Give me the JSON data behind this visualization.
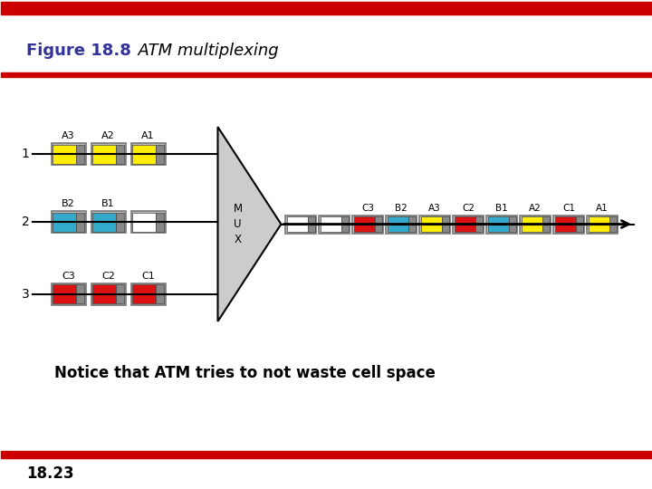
{
  "title_bold": "Figure 18.8",
  "title_italic": "  ATM multiplexing",
  "page_number": "18.23",
  "notice_text": "Notice that ATM tries to not waste cell space",
  "top_bar_color": "#cc0000",
  "bg_color": "#ffffff",
  "title_color": "#333399",
  "input_lines": [
    {
      "label": "1",
      "cells": [
        {
          "label": "A3",
          "color": "#ffee00"
        },
        {
          "label": "A2",
          "color": "#ffee00"
        },
        {
          "label": "A1",
          "color": "#ffee00"
        }
      ]
    },
    {
      "label": "2",
      "cells": [
        {
          "label": "B2",
          "color": "#33aacc"
        },
        {
          "label": "B1",
          "color": "#33aacc"
        },
        {
          "label": "",
          "color": "#ffffff"
        }
      ]
    },
    {
      "label": "3",
      "cells": [
        {
          "label": "C3",
          "color": "#dd1111"
        },
        {
          "label": "C2",
          "color": "#dd1111"
        },
        {
          "label": "C1",
          "color": "#dd1111"
        }
      ]
    }
  ],
  "output_cells": [
    {
      "label": "",
      "color": "#ffffff"
    },
    {
      "label": "",
      "color": "#ffffff"
    },
    {
      "label": "C3",
      "color": "#dd1111"
    },
    {
      "label": "B2",
      "color": "#33aacc"
    },
    {
      "label": "A3",
      "color": "#ffee00"
    },
    {
      "label": "C2",
      "color": "#dd1111"
    },
    {
      "label": "B1",
      "color": "#33aacc"
    },
    {
      "label": "A2",
      "color": "#ffee00"
    },
    {
      "label": "C1",
      "color": "#dd1111"
    },
    {
      "label": "A1",
      "color": "#ffee00"
    }
  ],
  "mux_label": "M\nU\nX"
}
